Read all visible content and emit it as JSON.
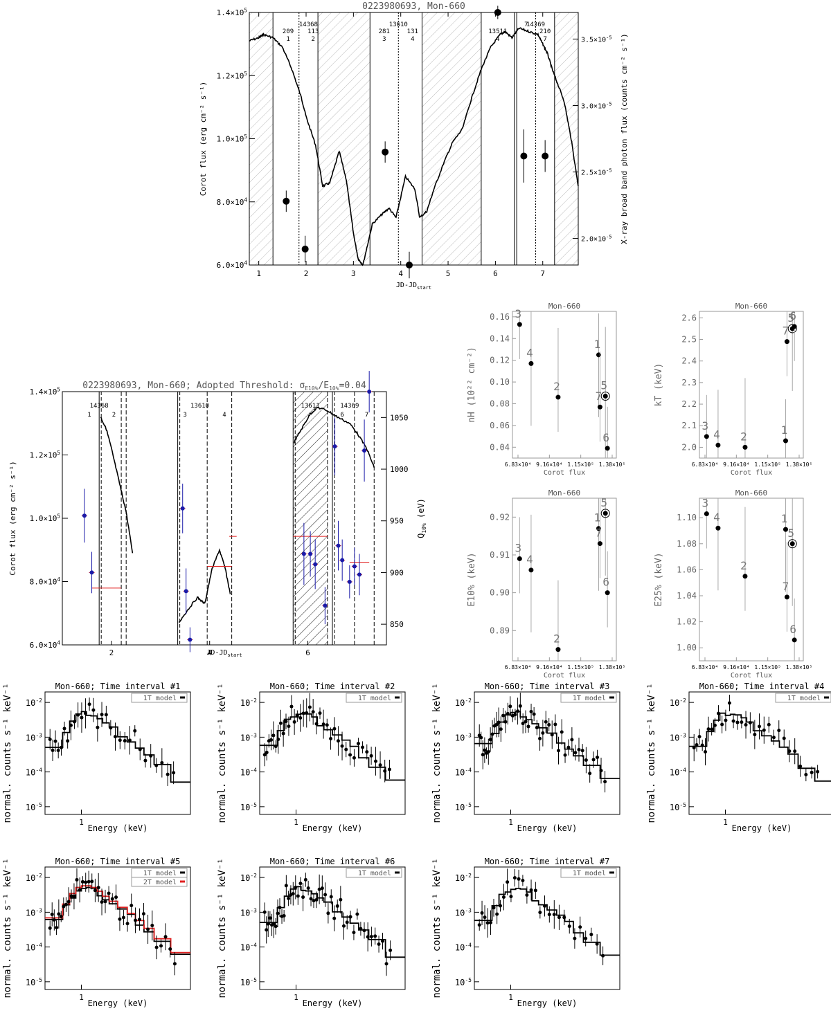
{
  "colors": {
    "ink": "#000000",
    "gray": "#888888",
    "hatch": "#bbbbbb",
    "blue": "#1a1aa8",
    "red": "#e02020"
  },
  "top": {
    "title": "0223980693, Mon-660",
    "xlabel": "JD-JD",
    "xlabel_sub": "start",
    "ylabel": "Corot flux (erg cm⁻² s⁻¹)",
    "y2label": "X-ray broad band photon flux (counts cm⁻² s⁻¹)",
    "xticks": [
      "1",
      "2",
      "3",
      "4",
      "5",
      "6",
      "7"
    ],
    "yticks": [
      {
        "v": 60000,
        "m": "6.0",
        "e": "4"
      },
      {
        "v": 80000,
        "m": "8.0",
        "e": "4"
      },
      {
        "v": 100000,
        "m": "1.0",
        "e": "5"
      },
      {
        "v": 120000,
        "m": "1.2",
        "e": "5"
      },
      {
        "v": 140000,
        "m": "1.4",
        "e": "5"
      }
    ],
    "y2ticks": [
      {
        "v": 2e-05,
        "m": "2.0",
        "e": "-5"
      },
      {
        "v": 2.5e-05,
        "m": "2.5",
        "e": "-5"
      },
      {
        "v": 3e-05,
        "m": "3.0",
        "e": "-5"
      },
      {
        "v": 3.5e-05,
        "m": "3.5",
        "e": "-5"
      }
    ],
    "segment_labels": [
      {
        "x": 2.05,
        "lines": [
          "14368"
        ]
      },
      {
        "x": 1.62,
        "lines": [
          "209",
          "1"
        ]
      },
      {
        "x": 2.15,
        "lines": [
          "113",
          "2"
        ]
      },
      {
        "x": 3.95,
        "lines": [
          "13610"
        ]
      },
      {
        "x": 3.65,
        "lines": [
          "281",
          "3"
        ]
      },
      {
        "x": 4.25,
        "lines": [
          "131",
          "4"
        ]
      },
      {
        "x": 6.05,
        "lines": [
          "13511",
          "4"
        ]
      },
      {
        "x": 6.85,
        "lines": [
          "14369"
        ]
      },
      {
        "x": 6.65,
        "lines": [
          "7"
        ]
      },
      {
        "x": 7.05,
        "lines": [
          "210",
          "7"
        ]
      }
    ]
  },
  "mid": {
    "title": "0223980693, Mon-660; Adopted Threshold: σ/E=0.04",
    "title_prefix": "0223980693, Mon-660; Adopted Threshold: σ",
    "title_sub1": "E10%",
    "title_mid": "/E",
    "title_sub2": "10%",
    "title_suffix": "=0.04",
    "xlabel": "JD-JD",
    "xlabel_sub": "start",
    "ylabel": "Corot flux (erg cm⁻² s⁻¹)",
    "y2label": "Q",
    "y2label_sub": "10%",
    "y2label_unit": " (eV)",
    "xticks": [
      "2",
      "4",
      "6"
    ],
    "yticks": [
      {
        "v": 60000,
        "m": "6.0",
        "e": "4"
      },
      {
        "v": 80000,
        "m": "8.0",
        "e": "4"
      },
      {
        "v": 100000,
        "m": "1.0",
        "e": "5"
      },
      {
        "v": 120000,
        "m": "1.2",
        "e": "5"
      },
      {
        "v": 140000,
        "m": "1.4",
        "e": "5"
      }
    ],
    "y2ticks": [
      "850",
      "900",
      "950",
      "1000",
      "1050"
    ],
    "segment_labels": [
      {
        "x": 1.75,
        "lines": [
          "14368"
        ]
      },
      {
        "x": 1.55,
        "lines": [
          "1"
        ]
      },
      {
        "x": 2.05,
        "lines": [
          "2"
        ]
      },
      {
        "x": 3.8,
        "lines": [
          "13610"
        ]
      },
      {
        "x": 3.5,
        "lines": [
          "3"
        ]
      },
      {
        "x": 4.3,
        "lines": [
          "4"
        ]
      },
      {
        "x": 6.05,
        "lines": [
          "13611"
        ]
      },
      {
        "x": 6.85,
        "lines": [
          "14369"
        ]
      },
      {
        "x": 6.7,
        "lines": [
          "6"
        ]
      },
      {
        "x": 7.2,
        "lines": [
          "7"
        ]
      }
    ]
  },
  "small": [
    {
      "title": "Mon-660",
      "xlabel": "Corot flux",
      "ylabel": "nH (10²² cm⁻²)",
      "ylabel_main": "nH (10",
      "ylabel_exp": "22",
      "ylabel_rest": " cm",
      "ylabel_exp2": "-2",
      "ylabel_end": ")",
      "xticks": [
        "6.83×10⁴",
        "9.16×10⁴",
        "1.15×10⁵",
        "1.38×10⁵"
      ],
      "yticks": [
        "0.04",
        "0.06",
        "0.08",
        "0.10",
        "0.12",
        "0.14",
        "0.16"
      ]
    },
    {
      "title": "Mon-660",
      "xlabel": "Corot flux",
      "ylabel": "kT (keV)",
      "xticks": [
        "6.83×10⁴",
        "9.16×10⁴",
        "1.15×10⁵",
        "1.38×10⁵"
      ],
      "yticks": [
        "2.0",
        "2.1",
        "2.2",
        "2.3",
        "2.4",
        "2.5",
        "2.6"
      ]
    },
    {
      "title": "Mon-660",
      "xlabel": "Corot flux",
      "ylabel": "E10% (keV)",
      "xticks": [
        "6.83×10⁴",
        "9.16×10⁴",
        "1.15×10⁵",
        "1.38×10⁵"
      ],
      "yticks": [
        "0.89",
        "0.90",
        "0.91",
        "0.92"
      ]
    },
    {
      "title": "Mon-660",
      "xlabel": "Corot flux",
      "ylabel": "E25% (keV)",
      "xticks": [
        "6.83×10⁴",
        "9.16×10⁴",
        "1.15×10⁵",
        "1.38×10⁵"
      ],
      "yticks": [
        "1.00",
        "1.02",
        "1.04",
        "1.06",
        "1.08",
        "1.10"
      ]
    }
  ],
  "spectra": [
    {
      "title": "Mon-660; Time interval #1",
      "legend": [
        "1T model"
      ]
    },
    {
      "title": "Mon-660; Time interval #2",
      "legend": [
        "1T model"
      ]
    },
    {
      "title": "Mon-660; Time interval #3",
      "legend": [
        "1T model"
      ]
    },
    {
      "title": "Mon-660; Time interval #4",
      "legend": [
        "1T model"
      ]
    },
    {
      "title": "Mon-660; Time interval #5",
      "legend": [
        "1T model",
        "2T model"
      ]
    },
    {
      "title": "Mon-660; Time interval #6",
      "legend": [
        "1T model"
      ]
    },
    {
      "title": "Mon-660; Time interval #7",
      "legend": [
        "1T model"
      ]
    }
  ],
  "spec_axes": {
    "xlabel": "Energy (keV)",
    "ylabel": "normal. counts s⁻¹ keV⁻¹",
    "xtick": "1",
    "yticks": [
      {
        "m": "10",
        "e": "-2"
      },
      {
        "m": "10",
        "e": "-3"
      },
      {
        "m": "10",
        "e": "-4"
      },
      {
        "m": "10",
        "e": "-5"
      }
    ]
  },
  "chart_data": [
    {
      "type": "line",
      "title": "0223980693, Mon-660",
      "xlabel": "JD-JD start",
      "ylabel": "Corot flux (erg cm-2 s-1)",
      "y2label": "X-ray broad band photon flux (counts cm-2 s-1)",
      "xlim": [
        0.8,
        7.75
      ],
      "ylim": [
        60000,
        140000
      ],
      "y2lim": [
        1.8e-05,
        3.7e-05
      ],
      "corot_curve": {
        "x": [
          0.8,
          1.0,
          1.1,
          1.3,
          1.5,
          1.7,
          1.9,
          2.0,
          2.2,
          2.35,
          2.5,
          2.7,
          2.85,
          3.0,
          3.1,
          3.2,
          3.4,
          3.6,
          3.75,
          3.9,
          4.1,
          4.3,
          4.4,
          4.55,
          4.7,
          4.9,
          5.1,
          5.3,
          5.5,
          5.7,
          5.9,
          6.1,
          6.2,
          6.35,
          6.5,
          6.7,
          6.9,
          7.0,
          7.1,
          7.2,
          7.3,
          7.45,
          7.6,
          7.75
        ],
        "y": [
          131000,
          132000,
          133000,
          132000,
          129000,
          122000,
          113000,
          107000,
          98000,
          85000,
          86000,
          96000,
          87000,
          70000,
          62000,
          60000,
          73000,
          76000,
          78000,
          75000,
          88000,
          84000,
          75000,
          77000,
          84000,
          92000,
          99000,
          103000,
          113000,
          122000,
          129000,
          133000,
          134000,
          132000,
          135000,
          134000,
          133000,
          130000,
          127000,
          122000,
          118000,
          112000,
          100000,
          85000
        ]
      },
      "xray_points": {
        "x": [
          1.58,
          1.98,
          3.67,
          4.18,
          6.05,
          6.6,
          7.05
        ],
        "y": [
          2.28e-05,
          1.92e-05,
          2.65e-05,
          1.8e-05,
          3.7e-05,
          2.62e-05,
          2.62e-05
        ],
        "yerr": [
          8e-07,
          1e-06,
          8e-07,
          1e-06,
          5e-07,
          2e-06,
          1.2e-06
        ]
      },
      "intervals": [
        [
          1.3,
          1.85
        ],
        [
          1.85,
          2.25
        ],
        [
          3.35,
          3.95
        ],
        [
          3.95,
          4.45
        ],
        [
          5.7,
          6.42
        ],
        [
          6.42,
          6.85
        ],
        [
          6.85,
          7.25
        ]
      ],
      "hatched_gaps": [
        [
          0.8,
          1.3
        ],
        [
          2.25,
          3.35
        ],
        [
          4.45,
          5.7
        ],
        [
          7.25,
          7.75
        ]
      ]
    },
    {
      "type": "scatter",
      "title": "0223980693, Mon-660; Adopted Threshold: σE10%/E10%=0.04",
      "xlabel": "JD-JD start",
      "ylabel": "Corot flux (erg cm-2 s-1)",
      "y2label": "Q10% (eV)",
      "xlim": [
        1.0,
        7.6
      ],
      "ylim": [
        60000,
        140000
      ],
      "y2lim": [
        830,
        1075
      ],
      "q10_points": {
        "x": [
          1.45,
          1.6,
          3.45,
          3.52,
          3.6,
          5.92,
          6.05,
          6.15,
          6.35,
          6.55,
          6.62,
          6.7,
          6.85,
          6.95,
          7.05,
          7.15,
          7.25
        ],
        "y": [
          955,
          900,
          962,
          882,
          835,
          918,
          918,
          908,
          868,
          1022,
          926,
          912,
          891,
          906,
          898,
          1018,
          1075
        ],
        "yerr": [
          26,
          20,
          24,
          22,
          12,
          30,
          22,
          24,
          18,
          28,
          24,
          20,
          16,
          18,
          20,
          30,
          20
        ]
      },
      "q10_binned_red": [
        {
          "x": [
            1.6,
            2.2
          ],
          "y": 885
        },
        {
          "x": 3.95,
          "x2": 4.45,
          "y": 906
        },
        {
          "x": 4.4,
          "x2": 4.55,
          "y": 935
        },
        {
          "x": 5.7,
          "x2": 6.4,
          "y": 935
        },
        {
          "x": 6.85,
          "x2": 7.25,
          "y": 910
        }
      ]
    },
    {
      "type": "scatter",
      "title": "Mon-660",
      "xlabel": "Corot flux",
      "ylabel": "nH (10^22 cm^-2)",
      "xlim": [
        68300,
        138000
      ],
      "ylim": [
        0.03,
        0.165
      ],
      "points": [
        {
          "label": "3",
          "x": 69500,
          "y": 0.153
        },
        {
          "label": "4",
          "x": 78000,
          "y": 0.117
        },
        {
          "label": "2",
          "x": 98000,
          "y": 0.086
        },
        {
          "label": "1",
          "x": 128000,
          "y": 0.125
        },
        {
          "label": "7",
          "x": 129000,
          "y": 0.077
        },
        {
          "label": "5",
          "x": 133000,
          "y": 0.087
        },
        {
          "label": "6",
          "x": 134500,
          "y": 0.039
        }
      ]
    },
    {
      "type": "scatter",
      "title": "Mon-660",
      "xlabel": "Corot flux",
      "ylabel": "kT (keV)",
      "xlim": [
        68300,
        138000
      ],
      "ylim": [
        1.95,
        2.63
      ],
      "points": [
        {
          "label": "3",
          "x": 69500,
          "y": 2.05
        },
        {
          "label": "4",
          "x": 78000,
          "y": 2.01
        },
        {
          "label": "2",
          "x": 98000,
          "y": 2.0
        },
        {
          "label": "1",
          "x": 128000,
          "y": 2.03
        },
        {
          "label": "7",
          "x": 129000,
          "y": 2.49
        },
        {
          "label": "5",
          "x": 133000,
          "y": 2.55
        },
        {
          "label": "6",
          "x": 134500,
          "y": 2.56
        }
      ]
    },
    {
      "type": "scatter",
      "title": "Mon-660",
      "xlabel": "Corot flux",
      "ylabel": "E10% (keV)",
      "xlim": [
        68300,
        138000
      ],
      "ylim": [
        0.882,
        0.925
      ],
      "points": [
        {
          "label": "3",
          "x": 69500,
          "y": 0.909
        },
        {
          "label": "4",
          "x": 78000,
          "y": 0.906
        },
        {
          "label": "2",
          "x": 98000,
          "y": 0.885
        },
        {
          "label": "1",
          "x": 128000,
          "y": 0.917
        },
        {
          "label": "7",
          "x": 129000,
          "y": 0.913
        },
        {
          "label": "5",
          "x": 133000,
          "y": 0.921
        },
        {
          "label": "6",
          "x": 134500,
          "y": 0.9
        }
      ]
    },
    {
      "type": "scatter",
      "title": "Mon-660",
      "xlabel": "Corot flux",
      "ylabel": "E25% (keV)",
      "xlim": [
        68300,
        138000
      ],
      "ylim": [
        0.99,
        1.115
      ],
      "points": [
        {
          "label": "3",
          "x": 69500,
          "y": 1.103
        },
        {
          "label": "4",
          "x": 78000,
          "y": 1.092
        },
        {
          "label": "2",
          "x": 98000,
          "y": 1.055
        },
        {
          "label": "1",
          "x": 128000,
          "y": 1.091
        },
        {
          "label": "7",
          "x": 129000,
          "y": 1.039
        },
        {
          "label": "5",
          "x": 133000,
          "y": 1.08
        },
        {
          "label": "6",
          "x": 134500,
          "y": 1.006
        }
      ]
    },
    {
      "type": "scatter",
      "subtype": "x-ray spectra (7 panels, log-log)",
      "xlabel": "Energy (keV)",
      "ylabel": "normal. counts s-1 keV-1",
      "xlim": [
        0.5,
        8.0
      ],
      "ylim": [
        1e-05,
        0.02
      ],
      "log_x": true,
      "log_y": true,
      "model_1T_steps": {
        "e": [
          0.5,
          0.7,
          0.8,
          0.9,
          1.0,
          1.1,
          1.2,
          1.35,
          1.5,
          1.7,
          2.0,
          2.4,
          2.8,
          3.3,
          4.0,
          5.5,
          8.0
        ],
        "counts": [
          0.0006,
          0.0015,
          0.003,
          0.0045,
          0.005,
          0.005,
          0.0045,
          0.0035,
          0.0025,
          0.0018,
          0.0012,
          0.0008,
          0.0005,
          0.0003,
          0.00015,
          6e-05,
          3e-05
        ]
      }
    }
  ]
}
